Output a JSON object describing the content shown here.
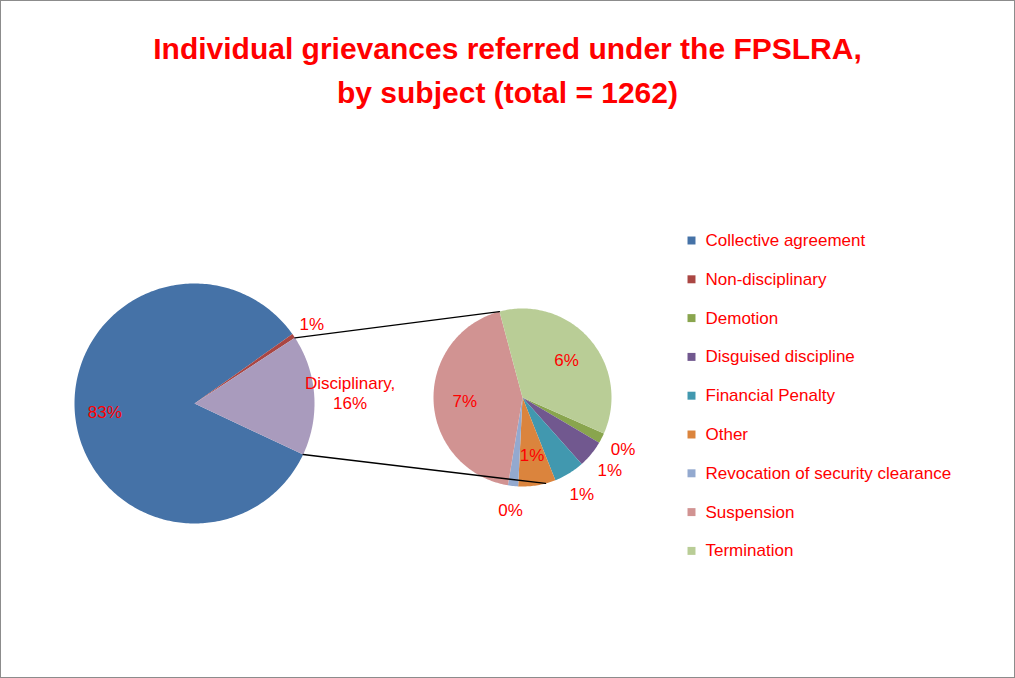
{
  "chart_data": {
    "type": "pie",
    "title": "Individual grievances referred under the FPSLRA,\nby subject (total = 1262)",
    "categories": [
      "Collective agreement",
      "Non-disciplinary",
      "Disciplinary"
    ],
    "values": [
      83.2,
      0.6,
      16.2
    ],
    "value_labels": [
      "83%",
      "1%",
      "Disciplinary,\n16%"
    ],
    "colors": [
      "#4572A7",
      "#AA4643",
      "#A99BBD"
    ],
    "legend": "right",
    "data_labels": true,
    "breakdown": {
      "of": "Disciplinary",
      "categories": [
        "Demotion",
        "Disguised discipline",
        "Financial Penalty",
        "Other",
        "Revocation of security clearance",
        "Suspension",
        "Termination"
      ],
      "values": [
        0.3,
        0.8,
        0.9,
        1.1,
        0.3,
        7.0,
        5.8
      ],
      "value_labels": [
        "0%",
        "1%",
        "1%",
        "1%",
        "0%",
        "7%",
        "6%"
      ],
      "colors": [
        "#89A54E",
        "#71588F",
        "#4198AF",
        "#DB843D",
        "#93A9CF",
        "#D19392",
        "#B9CD96"
      ]
    }
  }
}
